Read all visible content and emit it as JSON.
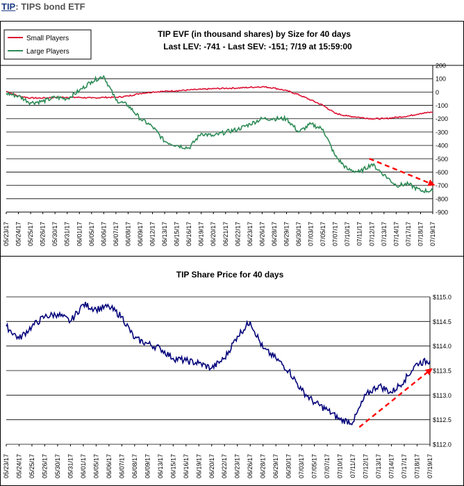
{
  "header": {
    "ticker": "TIP",
    "separator": ": ",
    "description": "TIPS bond ETF"
  },
  "colors": {
    "small": "#dd1133",
    "large": "#2e8b57",
    "price": "#00007a",
    "trend": "#ff0000"
  },
  "chart_data": [
    {
      "type": "line",
      "title": "TIP EVF (in thousand shares) by Size for 40 days",
      "subtitle": "Last LEV: -741 - Last SEV: -151; 7/19 at 15:59:00",
      "legend": {
        "placement": "top-left",
        "entries": [
          "Small Players",
          "Large Players"
        ]
      },
      "y_ticks": [
        200,
        100,
        0,
        -100,
        -200,
        -300,
        -400,
        -500,
        -600,
        -700,
        -800,
        -900
      ],
      "ylim": [
        -900,
        200
      ],
      "grid": true,
      "x_tick_labels": [
        "05/23/17",
        "05/24/17",
        "05/25/17",
        "05/26/17",
        "05/30/17",
        "05/31/17",
        "06/01/17",
        "06/05/17",
        "06/06/17",
        "06/07/17",
        "06/08/17",
        "06/09/17",
        "06/12/17",
        "06/13/17",
        "06/15/17",
        "06/16/17",
        "06/19/17",
        "06/20/17",
        "06/21/17",
        "06/22/17",
        "06/23/17",
        "06/26/17",
        "06/28/17",
        "06/29/17",
        "06/30/17",
        "07/03/17",
        "07/05/17",
        "07/07/17",
        "07/10/17",
        "07/11/17",
        "07/12/17",
        "07/13/17",
        "07/14/17",
        "07/17/17",
        "07/18/17",
        "07/19/17"
      ],
      "series": [
        {
          "name": "Small Players",
          "x": [
            0,
            1,
            2,
            3,
            4,
            5,
            6,
            7,
            8,
            9,
            10,
            11,
            12,
            13,
            14,
            15,
            16,
            17,
            18,
            19,
            20,
            21,
            22,
            23,
            24,
            25,
            26,
            27,
            28,
            29,
            30,
            31,
            32,
            33,
            34,
            35
          ],
          "values": [
            5,
            -30,
            -45,
            -45,
            -40,
            -40,
            -40,
            -45,
            -40,
            -40,
            -30,
            -10,
            0,
            5,
            10,
            15,
            20,
            25,
            28,
            30,
            35,
            40,
            30,
            10,
            -20,
            -60,
            -100,
            -160,
            -180,
            -190,
            -200,
            -200,
            -190,
            -180,
            -160,
            -151
          ]
        },
        {
          "name": "Large Players",
          "x": [
            0,
            1,
            2,
            3,
            4,
            5,
            6,
            7,
            8,
            9,
            10,
            11,
            12,
            13,
            14,
            15,
            16,
            17,
            18,
            19,
            20,
            21,
            22,
            23,
            24,
            25,
            26,
            27,
            28,
            29,
            30,
            31,
            32,
            33,
            34,
            35
          ],
          "values": [
            -10,
            -30,
            -80,
            -70,
            -40,
            -50,
            10,
            80,
            120,
            -60,
            -100,
            -200,
            -260,
            -370,
            -400,
            -420,
            -310,
            -330,
            -300,
            -280,
            -240,
            -200,
            -200,
            -200,
            -300,
            -240,
            -280,
            -480,
            -580,
            -600,
            -540,
            -620,
            -700,
            -690,
            -740,
            -741
          ]
        }
      ],
      "annotations": [
        {
          "type": "trend-arrow",
          "x": [
            29.8,
            35.2
          ],
          "y": [
            -500,
            -700
          ]
        }
      ]
    },
    {
      "type": "line",
      "title": "TIP Share Price for 40 days",
      "y_ticks": [
        "$115.0",
        "$114.5",
        "$114.0",
        "$113.5",
        "$113.0",
        "$112.5",
        "$112.0"
      ],
      "ylim": [
        112.0,
        115.0
      ],
      "grid": true,
      "x_tick_labels": [
        "05/23/17",
        "05/24/17",
        "05/25/17",
        "05/26/17",
        "05/30/17",
        "05/31/17",
        "06/01/17",
        "06/05/17",
        "06/06/17",
        "06/07/17",
        "06/08/17",
        "06/09/17",
        "06/13/17",
        "06/15/17",
        "06/16/17",
        "06/19/17",
        "06/20/17",
        "06/22/17",
        "06/23/17",
        "06/26/17",
        "06/28/17",
        "06/29/17",
        "06/30/17",
        "07/03/17",
        "07/05/17",
        "07/07/17",
        "07/10/17",
        "07/11/17",
        "07/12/17",
        "07/13/17",
        "07/14/17",
        "07/17/17",
        "07/18/17",
        "07/19/17"
      ],
      "series": [
        {
          "name": "",
          "x": [
            0,
            1,
            2,
            3,
            4,
            5,
            6,
            7,
            8,
            9,
            10,
            11,
            12,
            13,
            14,
            15,
            16,
            17,
            18,
            19,
            20,
            21,
            22,
            23,
            24,
            25,
            26,
            27,
            28,
            29,
            30,
            31,
            32,
            33
          ],
          "values": [
            114.4,
            114.15,
            114.4,
            114.6,
            114.65,
            114.5,
            114.85,
            114.75,
            114.8,
            114.6,
            114.15,
            114.05,
            113.95,
            113.75,
            113.7,
            113.65,
            113.55,
            113.75,
            114.2,
            114.5,
            113.95,
            113.75,
            113.5,
            113.1,
            112.85,
            112.7,
            112.5,
            112.45,
            113.0,
            113.2,
            113.05,
            113.3,
            113.65,
            113.7
          ]
        }
      ],
      "annotations": [
        {
          "type": "trend-arrow",
          "x": [
            27.5,
            33.2
          ],
          "y": [
            112.35,
            113.55
          ]
        }
      ]
    }
  ]
}
